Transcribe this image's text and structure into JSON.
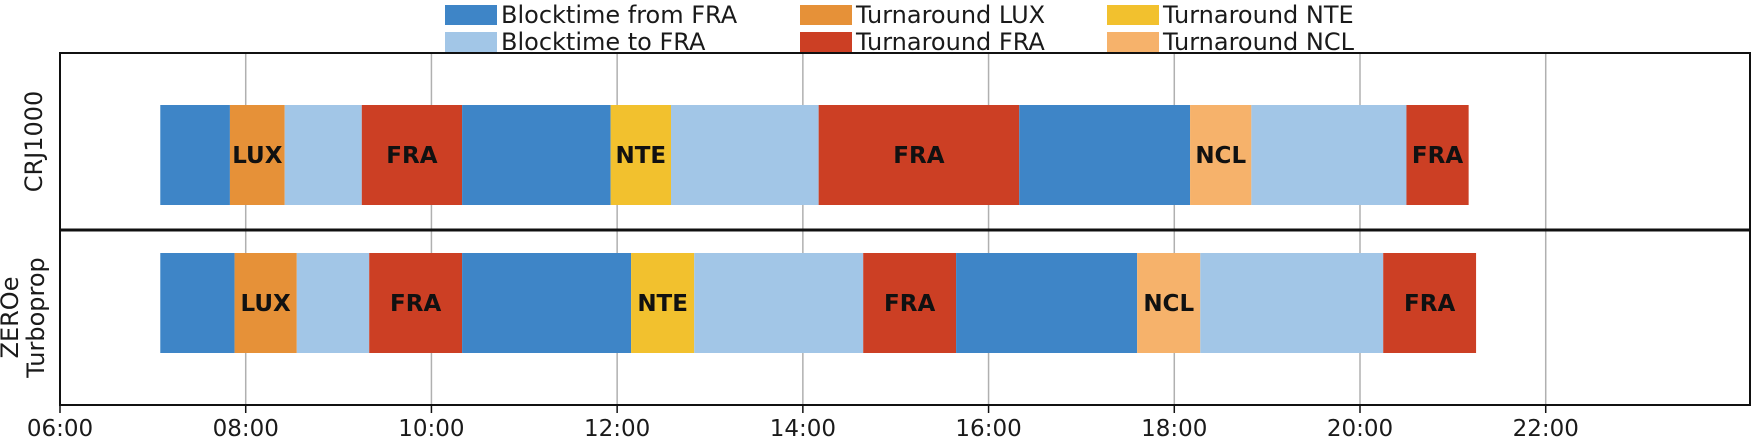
{
  "chart_data": {
    "type": "gantt",
    "x_axis": {
      "min": 6.0,
      "max": 24.2,
      "unit": "hour",
      "ticks": [
        {
          "value": 6,
          "label": "06:00"
        },
        {
          "value": 8,
          "label": "08:00"
        },
        {
          "value": 10,
          "label": "10:00"
        },
        {
          "value": 12,
          "label": "12:00"
        },
        {
          "value": 14,
          "label": "14:00"
        },
        {
          "value": 16,
          "label": "16:00"
        },
        {
          "value": 18,
          "label": "18:00"
        },
        {
          "value": 20,
          "label": "20:00"
        },
        {
          "value": 22,
          "label": "22:00"
        }
      ],
      "grid": true
    },
    "legend": {
      "placement": "top-center",
      "items": [
        {
          "key": "blockFrom",
          "label": "Blocktime from FRA",
          "color": "#3e85c7"
        },
        {
          "key": "blockTo",
          "label": "Blocktime to FRA",
          "color": "#a2c6e7"
        },
        {
          "key": "turnLUX",
          "label": "Turnaround LUX",
          "color": "#e69138"
        },
        {
          "key": "turnFRA",
          "label": "Turnaround FRA",
          "color": "#cc3f24"
        },
        {
          "key": "turnNTE",
          "label": "Turnaround NTE",
          "color": "#f2c12e"
        },
        {
          "key": "turnNCL",
          "label": "Turnaround NCL",
          "color": "#f6b26b"
        }
      ]
    },
    "rows": [
      {
        "name": "CRJ1000",
        "label_lines": [
          "CRJ1000"
        ],
        "segments": [
          {
            "start": 7.08,
            "end": 7.83,
            "cat": "blockFrom",
            "label": ""
          },
          {
            "start": 7.83,
            "end": 8.42,
            "cat": "turnLUX",
            "label": "LUX"
          },
          {
            "start": 8.42,
            "end": 9.25,
            "cat": "blockTo",
            "label": ""
          },
          {
            "start": 9.25,
            "end": 10.33,
            "cat": "turnFRA",
            "label": "FRA"
          },
          {
            "start": 10.33,
            "end": 11.93,
            "cat": "blockFrom",
            "label": ""
          },
          {
            "start": 11.93,
            "end": 12.58,
            "cat": "turnNTE",
            "label": "NTE"
          },
          {
            "start": 12.58,
            "end": 14.17,
            "cat": "blockTo",
            "label": ""
          },
          {
            "start": 14.17,
            "end": 16.33,
            "cat": "turnFRA",
            "label": "FRA"
          },
          {
            "start": 16.33,
            "end": 18.17,
            "cat": "blockFrom",
            "label": ""
          },
          {
            "start": 18.17,
            "end": 18.83,
            "cat": "turnNCL",
            "label": "NCL"
          },
          {
            "start": 18.83,
            "end": 20.5,
            "cat": "blockTo",
            "label": ""
          },
          {
            "start": 20.5,
            "end": 21.17,
            "cat": "turnFRA",
            "label": "FRA"
          }
        ]
      },
      {
        "name": "ZEROe Turboprop",
        "label_lines": [
          "ZEROe",
          "Turboprop"
        ],
        "segments": [
          {
            "start": 7.08,
            "end": 7.88,
            "cat": "blockFrom",
            "label": ""
          },
          {
            "start": 7.88,
            "end": 8.55,
            "cat": "turnLUX",
            "label": "LUX"
          },
          {
            "start": 8.55,
            "end": 9.33,
            "cat": "blockTo",
            "label": ""
          },
          {
            "start": 9.33,
            "end": 10.33,
            "cat": "turnFRA",
            "label": "FRA"
          },
          {
            "start": 10.33,
            "end": 12.15,
            "cat": "blockFrom",
            "label": ""
          },
          {
            "start": 12.15,
            "end": 12.83,
            "cat": "turnNTE",
            "label": "NTE"
          },
          {
            "start": 12.83,
            "end": 14.65,
            "cat": "blockTo",
            "label": ""
          },
          {
            "start": 14.65,
            "end": 15.65,
            "cat": "turnFRA",
            "label": "FRA"
          },
          {
            "start": 15.65,
            "end": 17.6,
            "cat": "blockFrom",
            "label": ""
          },
          {
            "start": 17.6,
            "end": 18.28,
            "cat": "turnNCL",
            "label": "NCL"
          },
          {
            "start": 18.28,
            "end": 20.25,
            "cat": "blockTo",
            "label": ""
          },
          {
            "start": 20.25,
            "end": 21.25,
            "cat": "turnFRA",
            "label": "FRA"
          }
        ]
      }
    ]
  }
}
